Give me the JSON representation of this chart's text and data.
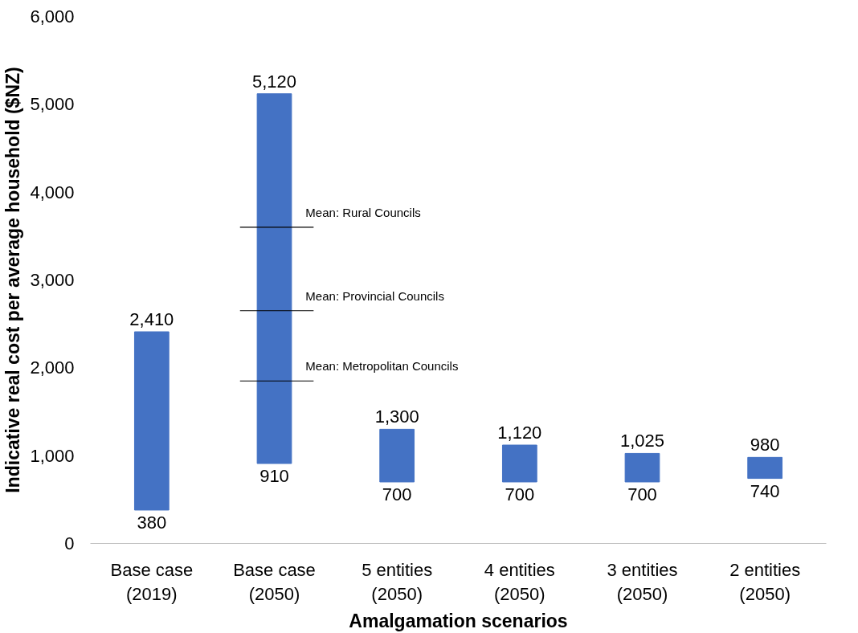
{
  "chart_data": {
    "type": "bar",
    "xlabel": "Amalgamation scenarios",
    "ylabel": "Indicative real cost per average household ($NZ)",
    "categories": [
      "Base case (2019)",
      "Base case (2050)",
      "5 entities (2050)",
      "4 entities (2050)",
      "3 entities (2050)",
      "2 entities (2050)"
    ],
    "base": [
      380,
      910,
      700,
      700,
      700,
      740
    ],
    "values": [
      2030,
      4210,
      600,
      420,
      325,
      240
    ],
    "color": "#4472c4",
    "value_labels": [
      "2,410",
      "5,120",
      "1,300",
      "1,120",
      "1,025",
      "980"
    ],
    "annotations": [
      {
        "text": "380",
        "x": "Base case (2019)",
        "y": 380
      },
      {
        "text": "910",
        "x": "Base case (2050)",
        "y": 910
      },
      {
        "text": "700",
        "x": "5 entities (2050)",
        "y": 700
      },
      {
        "text": "700",
        "x": "4 entities (2050)",
        "y": 700
      },
      {
        "text": "700",
        "x": "3 entities (2050)",
        "y": 700
      },
      {
        "text": "740",
        "x": "2 entities (2050)",
        "y": 740
      }
    ],
    "ref_lines": [
      {
        "axis": "y",
        "value": 3600,
        "label": "Mean: Rural Councils",
        "color": "#000000"
      },
      {
        "axis": "y",
        "value": 2650,
        "label": "Mean: Provincial Councils",
        "color": "#000000"
      },
      {
        "axis": "y",
        "value": 1850,
        "label": "Mean: Metropolitan Councils",
        "color": "#000000"
      }
    ],
    "ylim": [
      0,
      6000
    ],
    "yticks": [
      {
        "value": 0,
        "label": "0"
      },
      {
        "value": 1000,
        "label": "1,000"
      },
      {
        "value": 2000,
        "label": "2,000"
      },
      {
        "value": 3000,
        "label": "3,000"
      },
      {
        "value": 4000,
        "label": "4,000"
      },
      {
        "value": 5000,
        "label": "5,000"
      },
      {
        "value": 6000,
        "label": "6,000"
      }
    ],
    "grid": false
  }
}
